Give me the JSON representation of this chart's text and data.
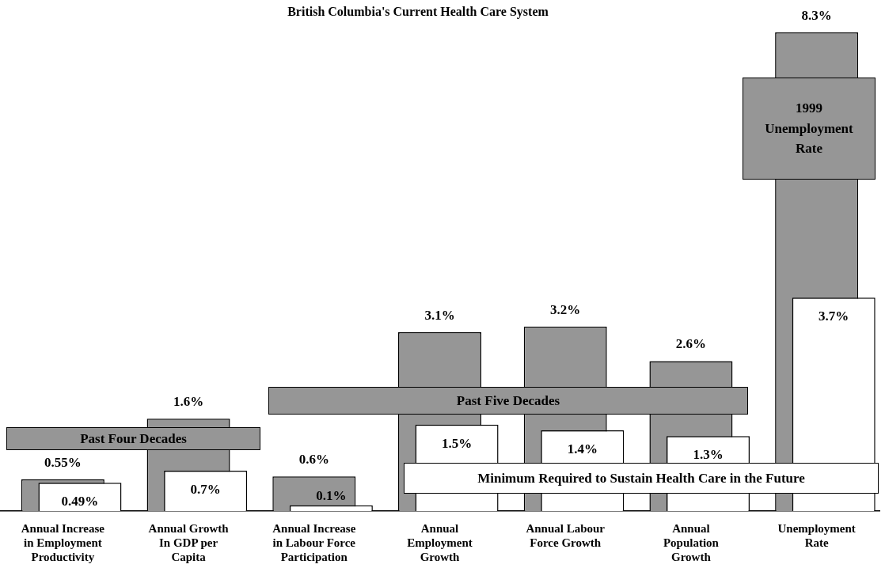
{
  "chart_data": {
    "type": "bar",
    "title": "British Columbia's Current Health Care System",
    "categories": [
      "Annual Increase in Employment Productivity",
      "Annual Growth In GDP per Capita",
      "Annual Increase in Labour Force Participation",
      "Annual Employment Growth",
      "Annual Labour Force Growth",
      "Annual Population Growth",
      "Unemployment Rate"
    ],
    "series": [
      {
        "color": "#969696",
        "values": [
          0.55,
          1.6,
          0.6,
          3.1,
          3.2,
          2.6,
          8.3
        ],
        "value_labels": [
          "0.55%",
          "1.6%",
          "0.6%",
          "3.1%",
          "3.2%",
          "2.6%",
          "8.3%"
        ]
      },
      {
        "color": "#ffffff",
        "values": [
          0.49,
          0.7,
          0.1,
          1.5,
          1.4,
          1.3,
          3.7
        ],
        "value_labels": [
          "0.49%",
          "0.7%",
          "0.1%",
          "1.5%",
          "1.4%",
          "1.3%",
          "3.7%"
        ]
      }
    ],
    "annotations": [
      "Past Four Decades",
      "Past Five Decades",
      "1999 Unemployment Rate",
      "Minimum Required to Sustain Health Care in the Future"
    ],
    "grid": false,
    "legend": false
  }
}
